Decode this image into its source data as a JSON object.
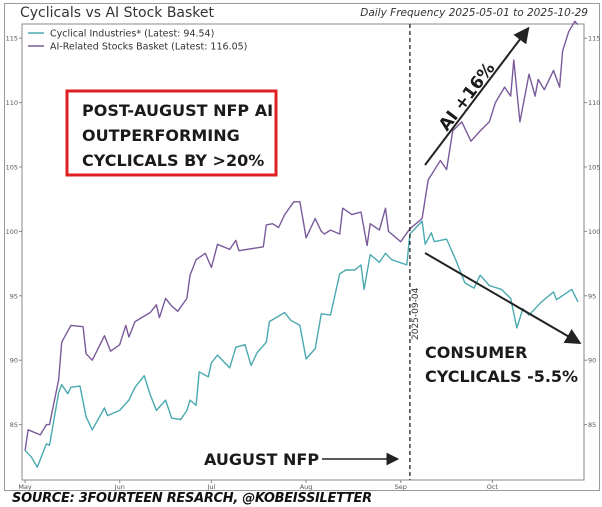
{
  "chart_data": {
    "type": "line",
    "title": "Cyclicals vs AI Stock Basket",
    "subtitle": "Daily Frequency 2025-05-01 to 2025-10-29",
    "xlim": [
      "2025-04-30",
      "2025-10-31"
    ],
    "ylim": [
      80.7,
      116.1
    ],
    "x_ticks": [
      {
        "date": "2025-05-01",
        "label": "May"
      },
      {
        "date": "2025-06-01",
        "label": "Jun"
      },
      {
        "date": "2025-07-01",
        "label": "Jul"
      },
      {
        "date": "2025-08-01",
        "label": "Aug"
      },
      {
        "date": "2025-09-01",
        "label": "Sep"
      },
      {
        "date": "2025-10-01",
        "label": "Oct"
      }
    ],
    "y_ticks": [
      85,
      90,
      95,
      100,
      105,
      110,
      115
    ],
    "grid": false,
    "legend_placement": "top-left",
    "series": [
      {
        "name": "Cyclical Industries* (Latest: 94.54)",
        "color": "#4aa9b0",
        "points": [
          [
            "2025-05-01",
            83.0
          ],
          [
            "2025-05-03",
            82.5
          ],
          [
            "2025-05-05",
            81.7
          ],
          [
            "2025-05-08",
            83.5
          ],
          [
            "2025-05-09",
            83.4
          ],
          [
            "2025-05-12",
            87.5
          ],
          [
            "2025-05-13",
            88.1
          ],
          [
            "2025-05-15",
            87.4
          ],
          [
            "2025-05-16",
            87.9
          ],
          [
            "2025-05-19",
            88.0
          ],
          [
            "2025-05-21",
            85.6
          ],
          [
            "2025-05-23",
            84.6
          ],
          [
            "2025-05-27",
            86.3
          ],
          [
            "2025-05-28",
            85.7
          ],
          [
            "2025-06-01",
            86.1
          ],
          [
            "2025-06-04",
            86.9
          ],
          [
            "2025-06-06",
            87.9
          ],
          [
            "2025-06-09",
            88.8
          ],
          [
            "2025-06-11",
            87.3
          ],
          [
            "2025-06-13",
            86.1
          ],
          [
            "2025-06-16",
            86.9
          ],
          [
            "2025-06-18",
            85.5
          ],
          [
            "2025-06-21",
            85.4
          ],
          [
            "2025-06-23",
            86.1
          ],
          [
            "2025-06-24",
            86.9
          ],
          [
            "2025-06-26",
            86.5
          ],
          [
            "2025-06-27",
            89.1
          ],
          [
            "2025-06-30",
            88.7
          ],
          [
            "2025-07-01",
            89.8
          ],
          [
            "2025-07-03",
            90.4
          ],
          [
            "2025-07-07",
            89.4
          ],
          [
            "2025-07-09",
            91.0
          ],
          [
            "2025-07-12",
            91.2
          ],
          [
            "2025-07-14",
            89.6
          ],
          [
            "2025-07-16",
            90.6
          ],
          [
            "2025-07-19",
            91.4
          ],
          [
            "2025-07-20",
            93.0
          ],
          [
            "2025-07-25",
            93.7
          ],
          [
            "2025-07-27",
            93.1
          ],
          [
            "2025-07-30",
            92.7
          ],
          [
            "2025-08-01",
            90.1
          ],
          [
            "2025-08-04",
            90.9
          ],
          [
            "2025-08-06",
            93.6
          ],
          [
            "2025-08-09",
            93.5
          ],
          [
            "2025-08-12",
            96.7
          ],
          [
            "2025-08-14",
            97.0
          ],
          [
            "2025-08-17",
            97.0
          ],
          [
            "2025-08-19",
            97.4
          ],
          [
            "2025-08-20",
            95.5
          ],
          [
            "2025-08-22",
            98.2
          ],
          [
            "2025-08-25",
            97.6
          ],
          [
            "2025-08-27",
            98.3
          ],
          [
            "2025-08-29",
            97.8
          ],
          [
            "2025-09-03",
            97.4
          ],
          [
            "2025-09-04",
            99.8
          ],
          [
            "2025-09-08",
            100.8
          ],
          [
            "2025-09-09",
            99.0
          ],
          [
            "2025-09-11",
            99.9
          ],
          [
            "2025-09-12",
            99.2
          ],
          [
            "2025-09-16",
            99.4
          ],
          [
            "2025-09-19",
            97.8
          ],
          [
            "2025-09-22",
            96.0
          ],
          [
            "2025-09-25",
            95.6
          ],
          [
            "2025-09-27",
            96.6
          ],
          [
            "2025-09-30",
            95.8
          ],
          [
            "2025-10-04",
            95.5
          ],
          [
            "2025-10-07",
            94.8
          ],
          [
            "2025-10-09",
            92.5
          ],
          [
            "2025-10-11",
            94.0
          ],
          [
            "2025-10-13",
            93.5
          ],
          [
            "2025-10-17",
            94.5
          ],
          [
            "2025-10-21",
            95.3
          ],
          [
            "2025-10-22",
            94.7
          ],
          [
            "2025-10-27",
            95.5
          ],
          [
            "2025-10-29",
            94.54
          ]
        ]
      },
      {
        "name": "AI-Related Stocks Basket (Latest: 116.05)",
        "color": "#7a5a9a",
        "points": [
          [
            "2025-05-01",
            83.0
          ],
          [
            "2025-05-02",
            84.6
          ],
          [
            "2025-05-06",
            84.2
          ],
          [
            "2025-05-08",
            85.0
          ],
          [
            "2025-05-09",
            85.0
          ],
          [
            "2025-05-12",
            88.5
          ],
          [
            "2025-05-13",
            91.4
          ],
          [
            "2025-05-16",
            92.7
          ],
          [
            "2025-05-20",
            92.6
          ],
          [
            "2025-05-21",
            90.5
          ],
          [
            "2025-05-23",
            90.0
          ],
          [
            "2025-05-27",
            91.9
          ],
          [
            "2025-05-29",
            90.7
          ],
          [
            "2025-06-01",
            91.2
          ],
          [
            "2025-06-03",
            92.7
          ],
          [
            "2025-06-04",
            91.8
          ],
          [
            "2025-06-06",
            93.0
          ],
          [
            "2025-06-11",
            93.7
          ],
          [
            "2025-06-13",
            94.3
          ],
          [
            "2025-06-14",
            93.3
          ],
          [
            "2025-06-16",
            94.8
          ],
          [
            "2025-06-18",
            94.2
          ],
          [
            "2025-06-20",
            93.8
          ],
          [
            "2025-06-23",
            94.8
          ],
          [
            "2025-06-24",
            96.6
          ],
          [
            "2025-06-26",
            97.8
          ],
          [
            "2025-06-29",
            98.3
          ],
          [
            "2025-07-01",
            97.2
          ],
          [
            "2025-07-03",
            99.0
          ],
          [
            "2025-07-07",
            98.6
          ],
          [
            "2025-07-09",
            99.3
          ],
          [
            "2025-07-10",
            98.5
          ],
          [
            "2025-07-18",
            98.8
          ],
          [
            "2025-07-19",
            100.5
          ],
          [
            "2025-07-21",
            100.6
          ],
          [
            "2025-07-23",
            100.3
          ],
          [
            "2025-07-25",
            101.3
          ],
          [
            "2025-07-28",
            102.3
          ],
          [
            "2025-07-30",
            102.3
          ],
          [
            "2025-08-01",
            99.5
          ],
          [
            "2025-08-04",
            101.0
          ],
          [
            "2025-08-06",
            100.0
          ],
          [
            "2025-08-07",
            99.8
          ],
          [
            "2025-08-09",
            100.1
          ],
          [
            "2025-08-12",
            99.8
          ],
          [
            "2025-08-13",
            101.8
          ],
          [
            "2025-08-16",
            101.3
          ],
          [
            "2025-08-19",
            101.5
          ],
          [
            "2025-08-21",
            98.9
          ],
          [
            "2025-08-22",
            100.6
          ],
          [
            "2025-08-25",
            100.1
          ],
          [
            "2025-08-27",
            101.8
          ],
          [
            "2025-08-28",
            100.0
          ],
          [
            "2025-09-01",
            99.2
          ],
          [
            "2025-09-04",
            100.2
          ],
          [
            "2025-09-08",
            101.0
          ],
          [
            "2025-09-10",
            104.0
          ],
          [
            "2025-09-14",
            105.5
          ],
          [
            "2025-09-16",
            104.8
          ],
          [
            "2025-09-18",
            107.8
          ],
          [
            "2025-09-21",
            108.5
          ],
          [
            "2025-09-24",
            107.0
          ],
          [
            "2025-09-27",
            107.8
          ],
          [
            "2025-09-30",
            108.5
          ],
          [
            "2025-10-02",
            110.0
          ],
          [
            "2025-10-05",
            111.2
          ],
          [
            "2025-10-07",
            110.5
          ],
          [
            "2025-10-08",
            113.3
          ],
          [
            "2025-10-10",
            108.5
          ],
          [
            "2025-10-13",
            112.2
          ],
          [
            "2025-10-15",
            110.5
          ],
          [
            "2025-10-16",
            111.8
          ],
          [
            "2025-10-18",
            111.0
          ],
          [
            "2025-10-21",
            112.5
          ],
          [
            "2025-10-23",
            111.2
          ],
          [
            "2025-10-24",
            114.0
          ],
          [
            "2025-10-26",
            115.5
          ],
          [
            "2025-10-28",
            116.3
          ],
          [
            "2025-10-29",
            116.05
          ]
        ]
      }
    ],
    "vline": {
      "date": "2025-09-04",
      "label": "2025-09-04"
    },
    "annotations": {
      "box_lines": [
        "POST-AUGUST NFP AI",
        "OUTPERFORMING",
        "CYCLICALS BY >20%"
      ],
      "box_color": "#e02020",
      "ai_label": "AI +16%",
      "cyclical_lines": [
        "CONSUMER",
        "CYCLICALS -5.5%"
      ],
      "nfp_label": "AUGUST NFP"
    }
  },
  "source": "SOURCE: 3FOURTEEN RESARCH, @KOBEISSILETTER"
}
